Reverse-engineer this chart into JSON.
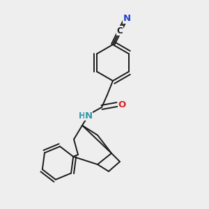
{
  "bg_color": "#eeeeee",
  "bond_color": "#1a1a1a",
  "bond_width": 1.4,
  "atom_colors": {
    "N": "#3399aa",
    "O": "#dd2222",
    "N_cn": "#2244cc"
  },
  "font_size": 9.5
}
